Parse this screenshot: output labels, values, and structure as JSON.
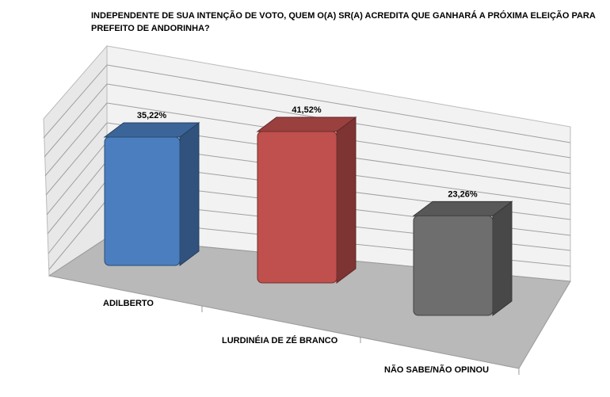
{
  "chart_data": {
    "type": "bar3d",
    "title": "INDEPENDENTE DE SUA INTENÇÃO DE VOTO, QUEM O(A) SR(A) ACREDITA QUE GANHARÁ A PRÓXIMA ELEIÇÃO PARA PREFEITO DE ANDORINHA?",
    "categories": [
      "ADILBERTO",
      "LURDINÉIA DE ZÉ BRANCO",
      "NÃO SABE/NÃO OPINOU"
    ],
    "values": [
      35.22,
      41.52,
      23.26
    ],
    "value_labels": [
      "35,22%",
      "41,52%",
      "23,26%"
    ],
    "colors": [
      "#4a7ebf",
      "#c0504d",
      "#6e6e6e"
    ]
  }
}
